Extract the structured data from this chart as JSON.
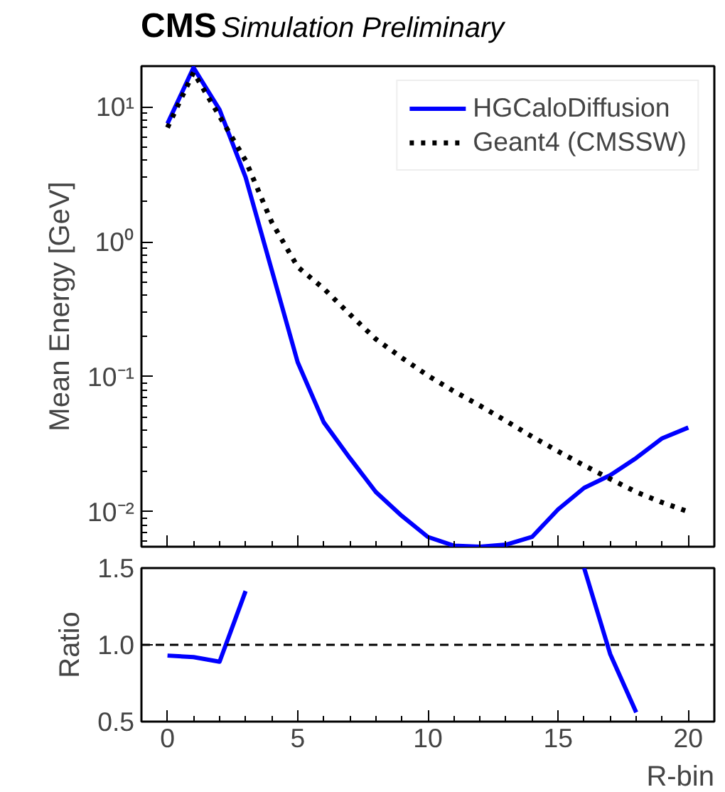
{
  "chart_data": [
    {
      "type": "line",
      "title": "CMS",
      "subtitle": "Simulation Preliminary",
      "ylabel": "Mean Energy [GeV]",
      "log": "y",
      "x": [
        0,
        1,
        2,
        3,
        4,
        5,
        6,
        7,
        8,
        9,
        10,
        11,
        12,
        13,
        14,
        15,
        16,
        17,
        18,
        19,
        20
      ],
      "xlim": [
        -1,
        21
      ],
      "xticks": [
        0,
        5,
        10,
        15,
        20
      ],
      "ylim": [
        0.0055,
        20
      ],
      "yticks": [
        {
          "value": 0.01,
          "label": "10⁻²"
        },
        {
          "value": 0.1,
          "label": "10⁻¹"
        },
        {
          "value": 1,
          "label": "10⁰"
        },
        {
          "value": 10,
          "label": "10¹"
        }
      ],
      "tick_labels": "y",
      "legend": "top right",
      "grid": false,
      "series": [
        {
          "name": "HGCaloDiffusion",
          "color": "#0000ff",
          "line_style": "solid",
          "values": [
            7.5,
            19.5,
            9.5,
            3.0,
            0.62,
            0.128,
            0.046,
            0.025,
            0.014,
            0.0093,
            0.0065,
            0.0056,
            0.0055,
            0.0057,
            0.0065,
            0.0104,
            0.015,
            0.0186,
            0.025,
            0.035,
            0.042
          ]
        },
        {
          "name": "Geant4 (CMSSW)",
          "color": "#000000",
          "line_style": "dotted",
          "values": [
            7.0,
            18.0,
            8.5,
            4.0,
            1.4,
            0.65,
            0.45,
            0.29,
            0.19,
            0.138,
            0.102,
            0.078,
            0.061,
            0.047,
            0.036,
            0.028,
            0.022,
            0.0175,
            0.014,
            0.0117,
            0.01
          ]
        }
      ]
    },
    {
      "type": "line",
      "xlabel": "R-bin",
      "ylabel": "Ratio",
      "x": [
        0,
        1,
        2,
        3,
        4,
        5,
        6,
        7,
        8,
        9,
        10,
        11,
        12,
        13,
        14,
        15,
        16,
        17,
        18
      ],
      "xlim": [
        -1,
        21
      ],
      "xticks": [
        0,
        5,
        10,
        15,
        20
      ],
      "ylim": [
        0.5,
        1.5
      ],
      "yticks": [
        {
          "value": 0.5,
          "label": "0.5"
        },
        {
          "value": 1.0,
          "label": "1.0"
        },
        {
          "value": 1.5,
          "label": "1.5"
        }
      ],
      "grid": false,
      "ref_lines": [
        {
          "axis": "y",
          "value": 1.0,
          "color": "#000000",
          "line_style": "dashed"
        }
      ],
      "series": [
        {
          "color": "#0000ff",
          "line_style": "solid",
          "values": [
            0.93,
            0.92,
            0.89,
            1.35,
            null,
            null,
            null,
            null,
            null,
            null,
            null,
            null,
            null,
            null,
            null,
            null,
            1.5,
            0.94,
            0.56
          ]
        }
      ]
    }
  ]
}
